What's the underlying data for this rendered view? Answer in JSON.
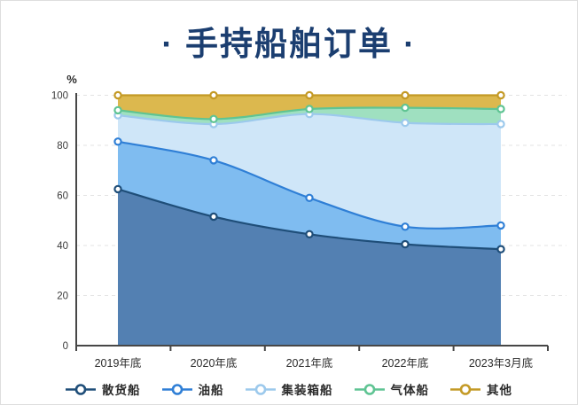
{
  "title": {
    "text": "·  手持船舶订单  ·",
    "color": "#1b3e70"
  },
  "axis": {
    "unit_label": "%",
    "axis_color": "#474747",
    "grid_color": "#e3e3e3"
  },
  "chart_data": {
    "type": "area",
    "stacked": true,
    "title": "手持船舶订单",
    "unit": "%",
    "categories": [
      "2019年底",
      "2020年底",
      "2021年底",
      "2022年底",
      "2023年3月底"
    ],
    "series": [
      {
        "id": "bulk-carrier",
        "name": "散货船",
        "values": [
          62.5,
          51.5,
          44.5,
          40.5,
          38.5
        ],
        "cumulative": [
          62.5,
          51.5,
          44.5,
          40.5,
          38.5
        ],
        "line_color": "#1f4e79",
        "fill_color": "#5380b2"
      },
      {
        "id": "oil-tanker",
        "name": "油船",
        "values": [
          19,
          22.5,
          14.5,
          7,
          9.5
        ],
        "cumulative": [
          81.5,
          74,
          59,
          47.5,
          48
        ],
        "line_color": "#2f7fd6",
        "fill_color": "#7fbcf0"
      },
      {
        "id": "container-ship",
        "name": "集装箱船",
        "values": [
          10.5,
          14.5,
          33.5,
          41.5,
          40.5
        ],
        "cumulative": [
          92,
          88.5,
          92.5,
          89,
          88.5
        ],
        "line_color": "#9cc9ec",
        "fill_color": "#cfe6f8"
      },
      {
        "id": "gas-carrier",
        "name": "气体船",
        "values": [
          2,
          2,
          2,
          6,
          6
        ],
        "cumulative": [
          94,
          90.5,
          94.5,
          95,
          94.5
        ],
        "line_color": "#5fc493",
        "fill_color": "#9fe0c0"
      },
      {
        "id": "other",
        "name": "其他",
        "values": [
          6,
          9.5,
          5.5,
          5,
          5.5
        ],
        "cumulative": [
          100,
          100,
          100,
          100,
          100
        ],
        "line_color": "#c49a26",
        "fill_color": "#dcb84e"
      }
    ],
    "ylim": [
      0,
      100
    ],
    "yticks": [
      0,
      20,
      40,
      60,
      80,
      100
    ],
    "grid": "dashed-horizontal",
    "marker": "circle-white-fill",
    "legend_position": "bottom"
  }
}
